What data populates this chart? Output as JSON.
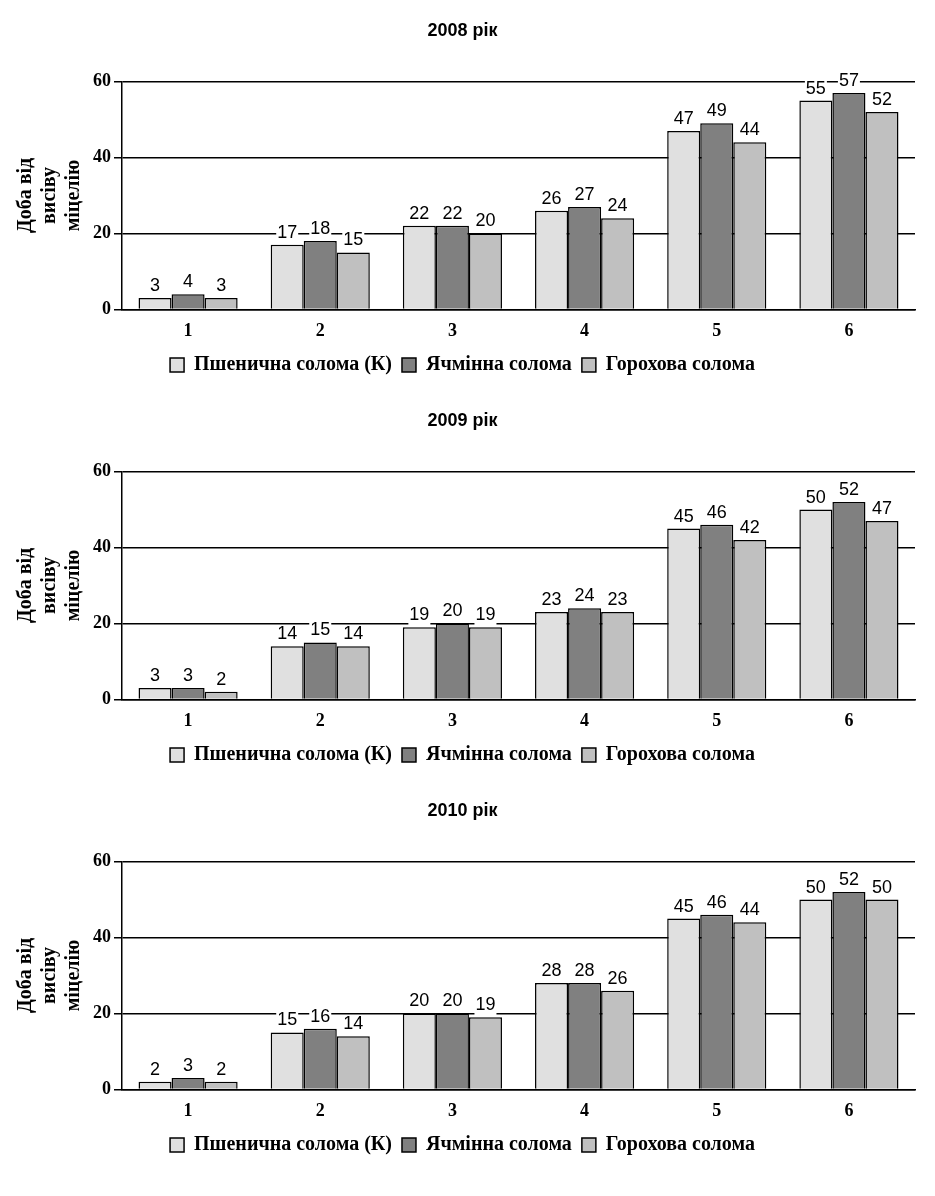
{
  "chart_data": [
    {
      "type": "bar",
      "title": "2008 рік",
      "ylabel": "Доба від висіву міцелію",
      "categories": [
        "1",
        "2",
        "3",
        "4",
        "5",
        "6"
      ],
      "series": [
        {
          "name": "Пшенична солома (К)",
          "color": "#e0e0e0",
          "values": [
            3,
            17,
            22,
            26,
            47,
            55
          ]
        },
        {
          "name": "Ячмінна солома",
          "color": "#808080",
          "values": [
            4,
            18,
            22,
            27,
            49,
            57
          ]
        },
        {
          "name": "Горохова солома",
          "color": "#c0c0c0",
          "values": [
            3,
            15,
            20,
            24,
            44,
            52
          ]
        }
      ],
      "ylim": [
        0,
        60
      ],
      "yticks": [
        0,
        20,
        40,
        60
      ],
      "grid": "y",
      "legend": "bottom",
      "data_labels": true
    },
    {
      "type": "bar",
      "title": "2009 рік",
      "ylabel": "Доба від висіву міцелію",
      "categories": [
        "1",
        "2",
        "3",
        "4",
        "5",
        "6"
      ],
      "series": [
        {
          "name": "Пшенична солома (К)",
          "color": "#e0e0e0",
          "values": [
            3,
            14,
            19,
            23,
            45,
            50
          ]
        },
        {
          "name": "Ячмінна солома",
          "color": "#808080",
          "values": [
            3,
            15,
            20,
            24,
            46,
            52
          ]
        },
        {
          "name": "Горохова солома",
          "color": "#c0c0c0",
          "values": [
            2,
            14,
            19,
            23,
            42,
            47
          ]
        }
      ],
      "ylim": [
        0,
        60
      ],
      "yticks": [
        0,
        20,
        40,
        60
      ],
      "grid": "y",
      "legend": "bottom",
      "data_labels": true
    },
    {
      "type": "bar",
      "title": "2010 рік",
      "ylabel": "Доба від висіву міцелію",
      "categories": [
        "1",
        "2",
        "3",
        "4",
        "5",
        "6"
      ],
      "series": [
        {
          "name": "Пшенична солома (К)",
          "color": "#e0e0e0",
          "values": [
            2,
            15,
            20,
            28,
            45,
            50
          ]
        },
        {
          "name": "Ячмінна солома",
          "color": "#808080",
          "values": [
            3,
            16,
            20,
            28,
            46,
            52
          ]
        },
        {
          "name": "Горохова солома",
          "color": "#c0c0c0",
          "values": [
            2,
            14,
            19,
            26,
            44,
            50
          ]
        }
      ],
      "ylim": [
        0,
        60
      ],
      "yticks": [
        0,
        20,
        40,
        60
      ],
      "grid": "y",
      "legend": "bottom",
      "data_labels": true
    }
  ]
}
